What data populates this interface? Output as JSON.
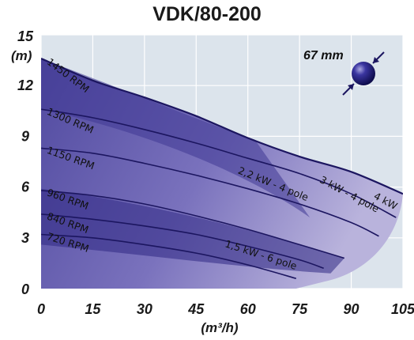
{
  "chart_data": {
    "type": "line",
    "title": "VDK/80-200",
    "y_unit": "(m)",
    "x_unit": "(m³/h)",
    "xlim": [
      0,
      105
    ],
    "ylim": [
      0,
      15
    ],
    "x_ticks": [
      "0",
      "15",
      "30",
      "45",
      "60",
      "75",
      "90",
      "105"
    ],
    "y_ticks": [
      "0",
      "3",
      "6",
      "9",
      "12",
      "15"
    ],
    "grid": true,
    "colors": {
      "plot_background": "#dce4ec",
      "curve_line": "#1c1660",
      "envelope_fill": "#6058a8"
    },
    "sphere_annotation": {
      "label": "67 mm",
      "icon": "sphere-passage-icon"
    },
    "series": [
      {
        "name": "1450 RPM",
        "x": [
          0,
          15,
          30,
          45,
          60,
          75,
          90,
          105
        ],
        "y": [
          13.6,
          12.3,
          11.3,
          10.2,
          8.9,
          7.8,
          6.9,
          5.6
        ]
      },
      {
        "name": "1300 RPM",
        "x": [
          0,
          15,
          30,
          45,
          60,
          75,
          90,
          103
        ],
        "y": [
          10.6,
          10.1,
          9.4,
          8.6,
          7.7,
          6.8,
          5.6,
          4.2
        ]
      },
      {
        "name": "1150 RPM",
        "x": [
          0,
          15,
          30,
          45,
          60,
          75,
          90,
          98
        ],
        "y": [
          8.3,
          8.0,
          7.4,
          6.7,
          5.9,
          5.0,
          3.9,
          3.1
        ]
      },
      {
        "name": "960 RPM",
        "x": [
          0,
          15,
          30,
          45,
          60,
          75,
          88
        ],
        "y": [
          5.8,
          5.5,
          5.0,
          4.3,
          3.5,
          2.6,
          1.8
        ]
      },
      {
        "name": "840 RPM",
        "x": [
          0,
          15,
          30,
          45,
          60,
          75,
          82
        ],
        "y": [
          4.4,
          4.1,
          3.7,
          3.2,
          2.5,
          1.7,
          1.2
        ]
      },
      {
        "name": "720 RPM",
        "x": [
          0,
          15,
          30,
          45,
          60,
          74
        ],
        "y": [
          3.2,
          3.0,
          2.6,
          2.1,
          1.4,
          0.6
        ]
      }
    ],
    "power_regions": [
      {
        "label": "2,2 kW - 4 pole",
        "x": 67,
        "y": 6.0,
        "angle": 22
      },
      {
        "label": "3 kW - 4 pole",
        "x": 89,
        "y": 5.4,
        "angle": 28
      },
      {
        "label": "4 kW",
        "x": 99.5,
        "y": 5.0,
        "angle": 28
      },
      {
        "label": "1,5 kW - 6 pole",
        "x": 63.5,
        "y": 1.8,
        "angle": 18
      }
    ]
  }
}
